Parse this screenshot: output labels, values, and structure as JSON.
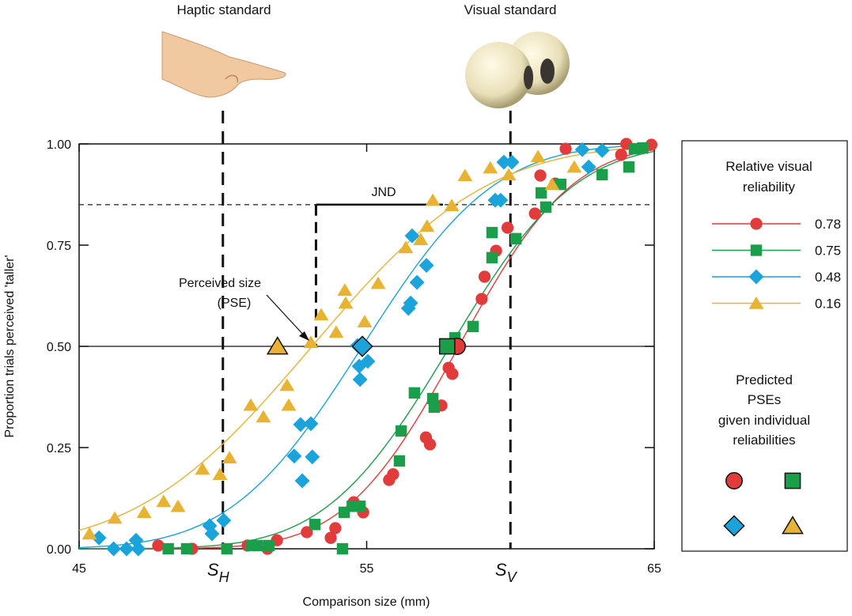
{
  "chart_data": {
    "type": "scatter",
    "xlabel": "Comparison size (mm)",
    "ylabel": "Proportion trials perceived 'taller'",
    "xlim": [
      45,
      65
    ],
    "ylim": [
      0,
      1
    ],
    "x_ticks": [
      "45",
      "55",
      "65"
    ],
    "y_ticks": [
      "0.00",
      "0.25",
      "0.50",
      "0.75",
      "1.00"
    ],
    "grid": false,
    "legend_position": "right",
    "top_labels": {
      "haptic": "Haptic standard",
      "visual": "Visual standard"
    },
    "standards": {
      "haptic": {
        "label": "S",
        "sub": "H",
        "x": 50
      },
      "visual": {
        "label": "S",
        "sub": "V",
        "x": 60
      }
    },
    "threshold_line": 0.85,
    "pse_line": 0.5,
    "annotations": {
      "jnd": "JND",
      "perceived_1": "Perceived size",
      "perceived_2": "(PSE)"
    },
    "legend": {
      "title_1": "Relative visual",
      "title_2": "reliability",
      "predicted_1": "Predicted",
      "predicted_2": "PSEs",
      "predicted_3": "given individual",
      "predicted_4": "reliabilities"
    },
    "series": [
      {
        "name": "0.78",
        "marker": "circle",
        "color": "#e23b3b",
        "pse": 58.2,
        "sigma": 3.1,
        "predicted_pse": 58.15,
        "x": [
          47.75,
          48.93,
          50.86,
          51.55,
          51.88,
          52.92,
          53.75,
          53.91,
          54.55,
          54.88,
          55.78,
          55.92,
          57.06,
          57.2,
          57.6,
          57.85,
          57.98,
          59.0,
          59.1,
          59.5,
          59.9,
          60.85,
          61.04,
          61.56,
          61.92,
          63.85,
          64.03,
          64.9
        ],
        "y": [
          0.008,
          0,
          0.008,
          0,
          0.021,
          0.041,
          0.027,
          0.051,
          0.115,
          0.09,
          0.17,
          0.184,
          0.275,
          0.258,
          0.354,
          0.447,
          0.432,
          0.617,
          0.672,
          0.736,
          0.793,
          0.828,
          0.922,
          0.902,
          0.988,
          0.973,
          1.0,
          0.998
        ]
      },
      {
        "name": "0.75",
        "marker": "square",
        "color": "#1a9e4a",
        "pse": 57.9,
        "sigma": 3.4,
        "predicted_pse": 57.8,
        "x": [
          48.1,
          48.74,
          50.14,
          50.99,
          51.2,
          51.6,
          53.2,
          54.16,
          54.22,
          54.5,
          54.77,
          56.14,
          56.2,
          56.66,
          57.3,
          57.35,
          58.07,
          58.7,
          59.36,
          59.36,
          60.19,
          61.07,
          61.23,
          61.75,
          63.19,
          64.12,
          64.31,
          64.6
        ],
        "y": [
          0,
          0,
          0,
          0.008,
          0.008,
          0.008,
          0.06,
          0,
          0.09,
          0.105,
          0.105,
          0.217,
          0.291,
          0.385,
          0.371,
          0.35,
          0.521,
          0.549,
          0.781,
          0.719,
          0.766,
          0.879,
          0.844,
          0.9,
          0.924,
          0.943,
          0.988,
          0.99
        ]
      },
      {
        "name": "0.48",
        "marker": "diamond",
        "color": "#1ba3dc",
        "pse": 54.85,
        "sigma": 3.6,
        "predicted_pse": 54.85,
        "x": [
          45.69,
          46.2,
          46.65,
          47.06,
          46.98,
          49.54,
          49.62,
          50.03,
          52.48,
          52.76,
          53.11,
          52.7,
          53.06,
          54.68,
          54.74,
          55.04,
          54.77,
          56.45,
          56.53,
          56.75,
          57.08,
          56.58,
          59.47,
          59.66,
          59.77,
          60.05,
          62.5,
          62.72,
          63.19
        ],
        "y": [
          0.027,
          0,
          0,
          0,
          0.021,
          0.057,
          0.037,
          0.07,
          0.229,
          0.168,
          0.227,
          0.307,
          0.309,
          0.502,
          0.451,
          0.463,
          0.418,
          0.594,
          0.607,
          0.658,
          0.7,
          0.773,
          0.861,
          0.861,
          0.955,
          0.955,
          0.986,
          0.943,
          0.984
        ]
      },
      {
        "name": "0.16",
        "marker": "triangle",
        "color": "#e8b232",
        "pse": 53.1,
        "sigma": 4.8,
        "predicted_pse": 51.9,
        "x": [
          45.36,
          46.24,
          47.26,
          47.94,
          48.44,
          49.29,
          49.9,
          50.23,
          50.97,
          51.41,
          52.23,
          52.29,
          53.06,
          53.42,
          53.94,
          54.27,
          54.24,
          54.93,
          55.4,
          56.36,
          56.88,
          57.1,
          57.3,
          57.96,
          58.42,
          59.3,
          59.94,
          60.96,
          61.45,
          62.22
        ],
        "y": [
          0.037,
          0.076,
          0.09,
          0.117,
          0.105,
          0.197,
          0.184,
          0.225,
          0.355,
          0.326,
          0.404,
          0.355,
          0.51,
          0.578,
          0.535,
          0.607,
          0.639,
          0.561,
          0.656,
          0.744,
          0.764,
          0.797,
          0.861,
          0.848,
          0.922,
          0.941,
          0.924,
          0.969,
          0.9,
          0.943
        ]
      }
    ]
  }
}
